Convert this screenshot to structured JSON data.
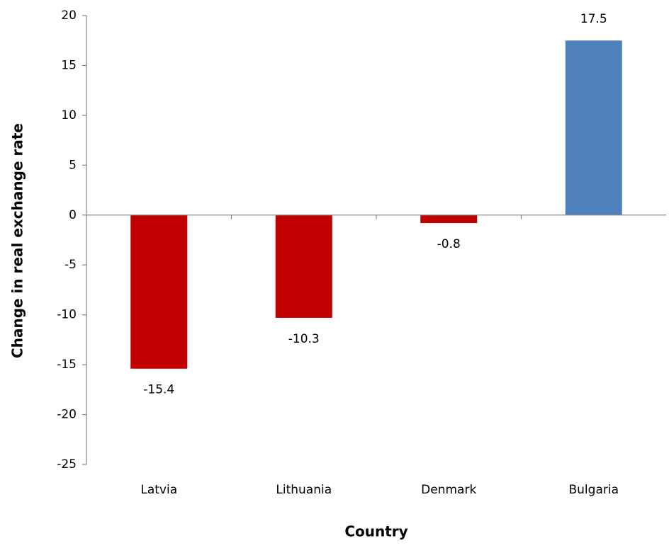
{
  "chart_data": {
    "type": "bar",
    "categories": [
      "Latvia",
      "Lithuania",
      "Denmark",
      "Bulgaria"
    ],
    "values": [
      -15.4,
      -10.3,
      -0.8,
      17.5
    ],
    "colors": [
      "#c00000",
      "#c00000",
      "#c00000",
      "#4f81bd"
    ],
    "x_label": "Country",
    "y_label": "Change in real exchange rate",
    "ylim": [
      -25,
      20
    ],
    "yticks": [
      -25,
      -20,
      -15,
      -10,
      -5,
      0,
      5,
      10,
      15,
      20
    ],
    "grid": false
  }
}
